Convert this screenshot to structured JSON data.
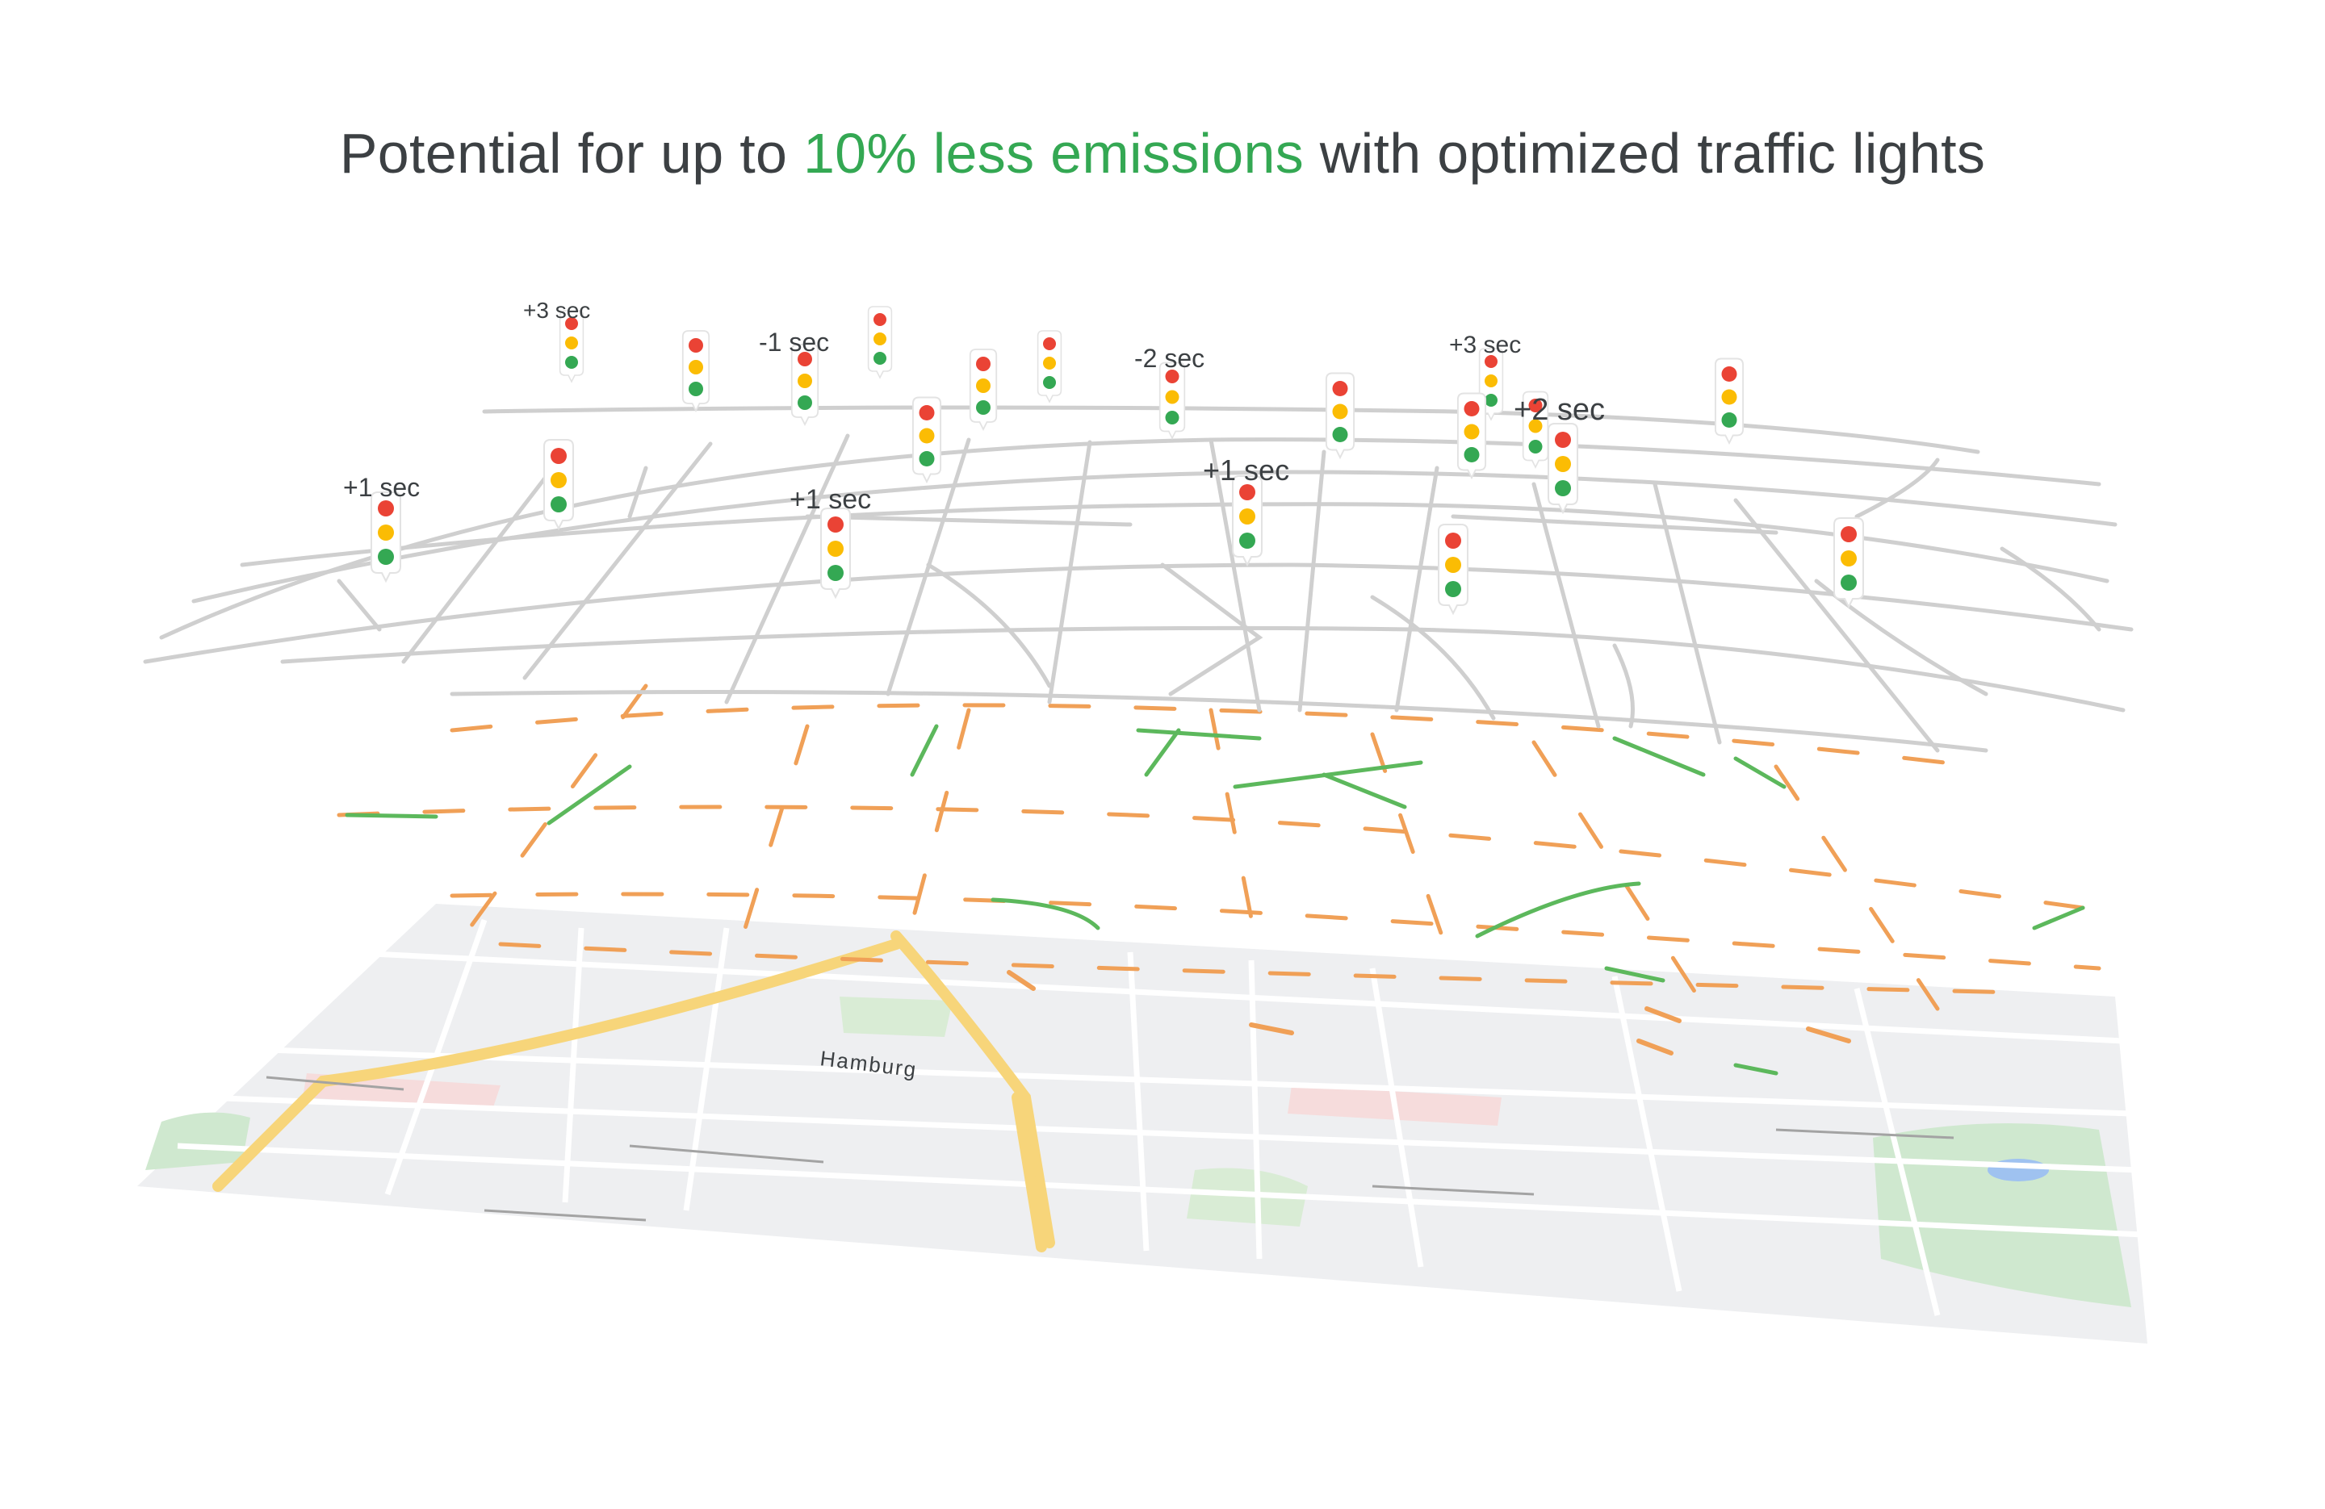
{
  "headline": {
    "before": "Potential for up to",
    "highlight": "10% less emissions",
    "after": "with optimized traffic lights",
    "highlight_color": "#34a853"
  },
  "map": {
    "city_label": "Hamburg"
  },
  "signal_labels": [
    "+3 sec",
    "-1 sec",
    "-2 sec",
    "+3 sec",
    "+2 sec",
    "+1 sec",
    "+1 sec",
    "+1 sec"
  ],
  "colors": {
    "road_gray": "#cfcfcf",
    "road_orange": "#f0a057",
    "road_green": "#5cb85c",
    "map_bg": "#eeeff1",
    "highway": "#f7d57a",
    "park": "#cfe8cf",
    "red_light": "#ea4335",
    "yellow_light": "#fbbc04",
    "green_light": "#34a853"
  }
}
